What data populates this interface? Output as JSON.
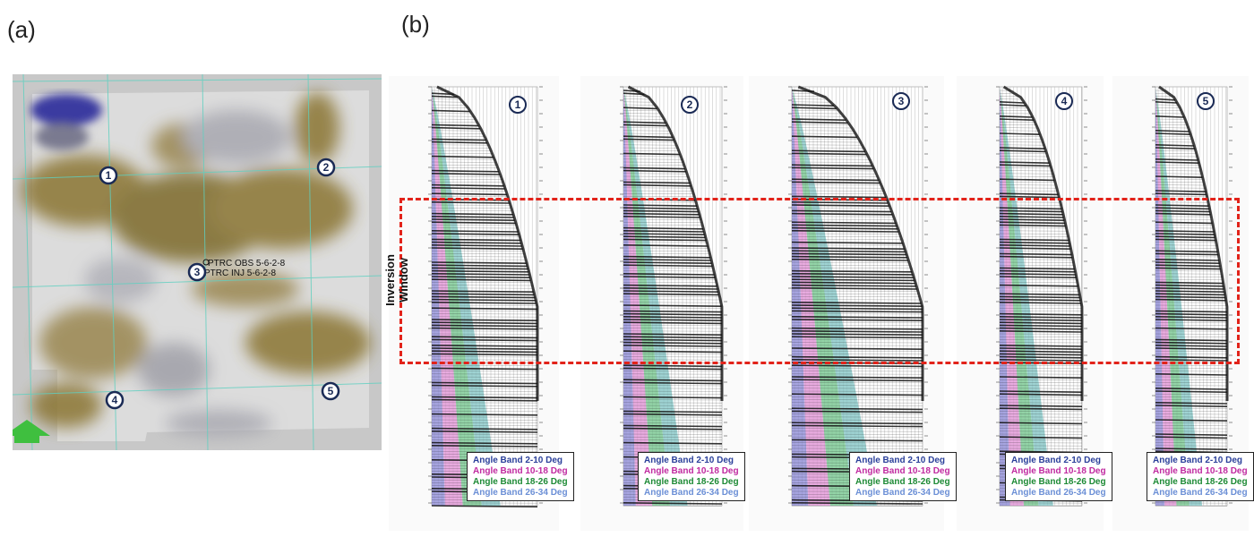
{
  "panels": {
    "a": "(a)",
    "b": "(b)"
  },
  "map": {
    "wells": [
      "PTRC OBS 5-6-2-8",
      "PTRC INJ 5-6-2-8"
    ],
    "markers": [
      "1",
      "2",
      "3",
      "4",
      "5"
    ],
    "north_arrow": "arrow-up-icon"
  },
  "inversion_window_label": "Inversion Window",
  "gathers": [
    {
      "number": "1"
    },
    {
      "number": "2"
    },
    {
      "number": "3"
    },
    {
      "number": "4"
    },
    {
      "number": "5"
    }
  ],
  "legend": [
    "Angle Band 2-10 Deg",
    "Angle Band 10-18 Deg",
    "Angle Band 18-26 Deg",
    "Angle Band 26-34 Deg"
  ],
  "colors": {
    "band_2_10": "#8a87d6",
    "band_10_18": "#e08fd4",
    "band_18_26": "#6fc48a",
    "band_26_34": "#7fc4c4",
    "inversion_window": "#e2231a",
    "map_brown": "#7a6a2a"
  }
}
